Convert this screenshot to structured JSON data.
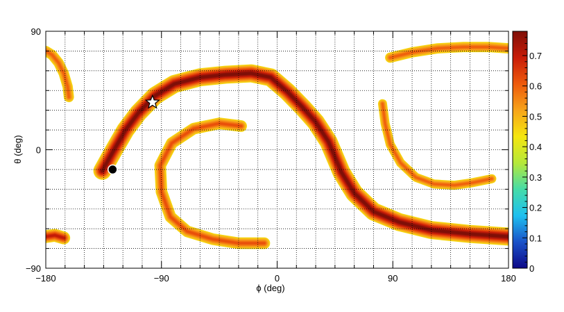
{
  "chart_data": {
    "type": "heatmap",
    "title": "",
    "xlabel": "ϕ (deg)",
    "ylabel": "θ (deg)",
    "xlim": [
      -180,
      180
    ],
    "ylim": [
      -90,
      90
    ],
    "x_ticks": [
      "−180",
      "−90",
      "0",
      "90",
      "180"
    ],
    "y_ticks": [
      "−90",
      "0",
      "90"
    ],
    "x_tick_values": [
      -180,
      -90,
      0,
      90,
      180
    ],
    "y_tick_values": [
      -90,
      0,
      90
    ],
    "grid": true,
    "colorbar": {
      "range": [
        0,
        0.78
      ],
      "ticks": [
        "0",
        "0.1",
        "0.2",
        "0.3",
        "0.4",
        "0.5",
        "0.6",
        "0.7"
      ],
      "tick_values": [
        0,
        0.1,
        0.2,
        0.3,
        0.4,
        0.5,
        0.6,
        0.7
      ],
      "colors": [
        "#0d0887",
        "#1a52c9",
        "#1ec0f0",
        "#45dca8",
        "#b5e83a",
        "#f5e60f",
        "#f7a41a",
        "#ee5a0c",
        "#c81c08",
        "#7f0f08"
      ],
      "cut_value": 0.45
    },
    "bands": [
      {
        "name": "main-band",
        "points": [
          [
            -136,
            -16
          ],
          [
            -128,
            -2
          ],
          [
            -118,
            15
          ],
          [
            -108,
            28
          ],
          [
            -95,
            41
          ],
          [
            -80,
            50
          ],
          [
            -60,
            55
          ],
          [
            -40,
            57
          ],
          [
            -20,
            58
          ],
          [
            -5,
            55
          ],
          [
            8,
            44
          ],
          [
            20,
            32
          ],
          [
            30,
            21
          ],
          [
            40,
            6
          ],
          [
            50,
            -17
          ],
          [
            60,
            -33
          ],
          [
            75,
            -47
          ],
          [
            95,
            -55
          ],
          [
            120,
            -61
          ],
          [
            150,
            -64
          ],
          [
            180,
            -66
          ]
        ],
        "peak": 0.78,
        "width": 7
      },
      {
        "name": "left-top-band",
        "points": [
          [
            -180,
            75
          ],
          [
            -175,
            72
          ],
          [
            -170,
            66
          ],
          [
            -166,
            58
          ],
          [
            -163,
            48
          ],
          [
            -162,
            40
          ]
        ],
        "peak": 0.6,
        "width": 4
      },
      {
        "name": "left-bottom-band",
        "points": [
          [
            -180,
            -66
          ],
          [
            -173,
            -65
          ],
          [
            -166,
            -67
          ]
        ],
        "peak": 0.7,
        "width": 5
      },
      {
        "name": "top-right-band",
        "points": [
          [
            88,
            70
          ],
          [
            105,
            74
          ],
          [
            125,
            77
          ],
          [
            145,
            78
          ],
          [
            165,
            78
          ],
          [
            180,
            77
          ]
        ],
        "peak": 0.6,
        "width": 4
      },
      {
        "name": "right-crescent",
        "points": [
          [
            82,
            35
          ],
          [
            84,
            20
          ],
          [
            88,
            4
          ],
          [
            96,
            -10
          ],
          [
            108,
            -21
          ],
          [
            122,
            -26
          ],
          [
            138,
            -27
          ],
          [
            152,
            -25
          ],
          [
            167,
            -22
          ]
        ],
        "peak": 0.6,
        "width": 3.5
      },
      {
        "name": "center-crescent",
        "points": [
          [
            -28,
            18
          ],
          [
            -45,
            20
          ],
          [
            -65,
            16
          ],
          [
            -82,
            5
          ],
          [
            -91,
            -12
          ],
          [
            -90,
            -32
          ],
          [
            -83,
            -51
          ],
          [
            -70,
            -62
          ],
          [
            -50,
            -68
          ],
          [
            -30,
            -71
          ],
          [
            -10,
            -71
          ]
        ],
        "peak": 0.62,
        "width": 4.5
      }
    ],
    "markers": [
      {
        "type": "star",
        "phi": -97,
        "theta": 36
      },
      {
        "type": "circle",
        "phi": -128,
        "theta": -15
      }
    ]
  }
}
